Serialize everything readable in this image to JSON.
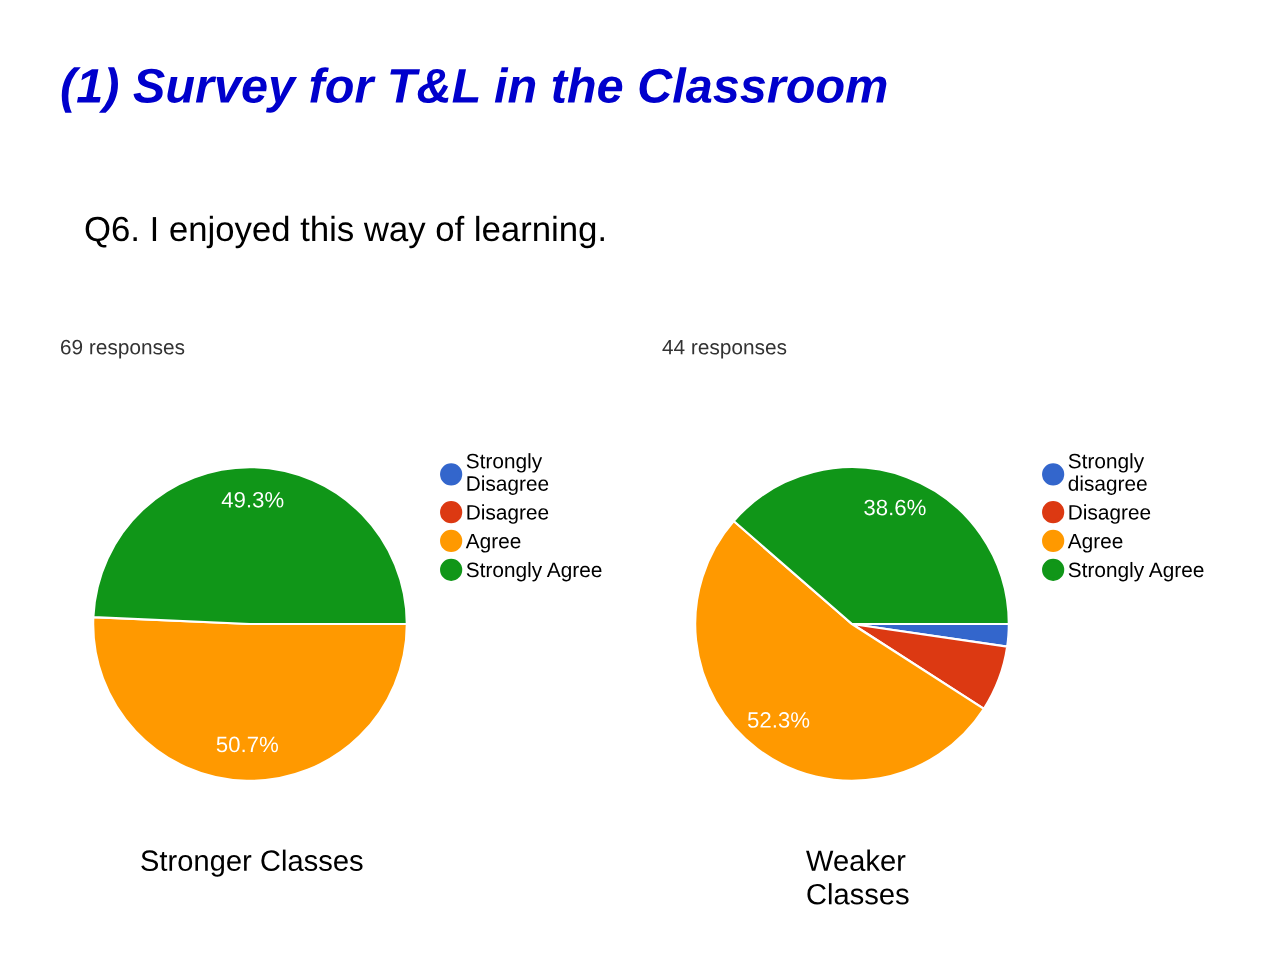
{
  "chart_data": [
    {
      "type": "pie",
      "title": "(1) Survey for T&L in the Classroom",
      "subtitle": "Q6. I enjoyed this way of learning.",
      "categories": [
        "Strongly\nDisagree",
        "Disagree",
        "Agree",
        "Strongly Agree"
      ],
      "values": [
        0,
        0,
        50.7,
        49.3
      ],
      "colors": [
        "#3366cc",
        "#dc3912",
        "#ff9900",
        "#109618"
      ],
      "value_labels": [
        null,
        null,
        "50.7%",
        "49.3%"
      ],
      "legend": "top right",
      "annotations": [
        "69 responses",
        "Stronger Classes"
      ]
    },
    {
      "type": "pie",
      "categories": [
        "Strongly\ndisagree",
        "Disagree",
        "Agree",
        "Strongly Agree"
      ],
      "values": [
        2.3,
        6.8,
        52.3,
        38.6
      ],
      "colors": [
        "#3366cc",
        "#dc3912",
        "#ff9900",
        "#109618"
      ],
      "value_labels": [
        null,
        null,
        "52.3%",
        "38.6%"
      ],
      "legend": "top right",
      "annotations": [
        "44 responses",
        "Weaker\nClasses"
      ]
    }
  ]
}
